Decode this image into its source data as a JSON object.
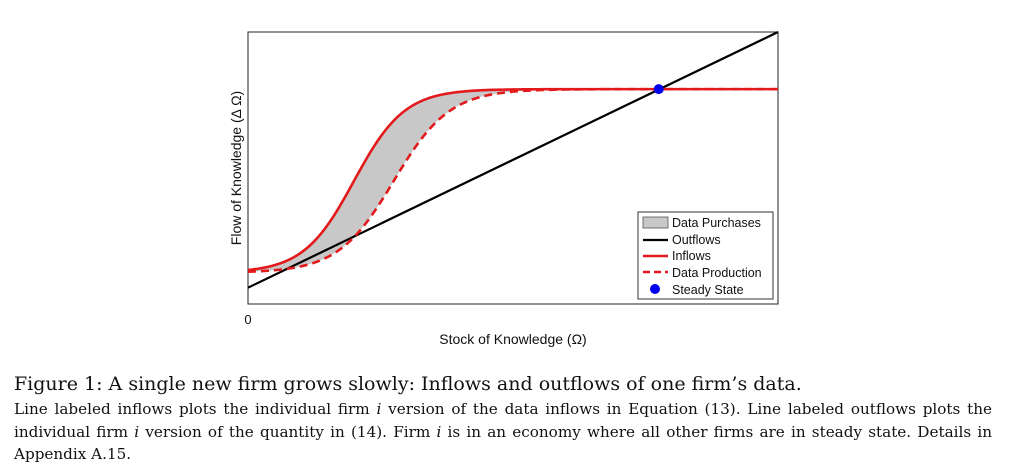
{
  "chart_data": {
    "type": "line",
    "xlabel": "Stock of Knowledge (Ω)",
    "ylabel": "Flow of Knowledge (Δ Ω)",
    "x_tick_labels": [
      "0"
    ],
    "xlim": [
      0,
      1
    ],
    "ylim": [
      0,
      1
    ],
    "grid": false,
    "legend_position": "bottom-right",
    "series": [
      {
        "name": "Data Purchases",
        "style": "shaded-area",
        "color": "#c8c8c8"
      },
      {
        "name": "Outflows",
        "style": "solid",
        "color": "#000000",
        "x": [
          0,
          1
        ],
        "y": [
          0.06,
          1.0
        ]
      },
      {
        "name": "Inflows",
        "style": "solid",
        "color": "#e31a1c",
        "floor": 0.115,
        "ceiling": 0.79,
        "midpoint": 0.2,
        "steepness": 21
      },
      {
        "name": "Data Production",
        "style": "dashed",
        "color": "#e31a1c",
        "floor": 0.115,
        "ceiling": 0.79,
        "midpoint": 0.275,
        "steepness": 19
      },
      {
        "name": "Steady State",
        "style": "marker",
        "color": "#0000ee",
        "x": [
          0.775
        ],
        "y": [
          0.79
        ]
      }
    ]
  },
  "caption": {
    "title": "Figure 1: A single new firm grows slowly: Inflows and outflows of one firm’s data.",
    "body_1": "Line labeled inflows plots the individual firm ",
    "var_1": "i",
    "body_2": " version of the data inflows in Equation (13). Line labeled outflows plots the individual firm ",
    "var_2": "i",
    "body_3": " version of the quantity in (14). Firm ",
    "var_3": "i",
    "body_4": " is in an economy where all other firms are in steady state. Details in Appendix A.15."
  }
}
